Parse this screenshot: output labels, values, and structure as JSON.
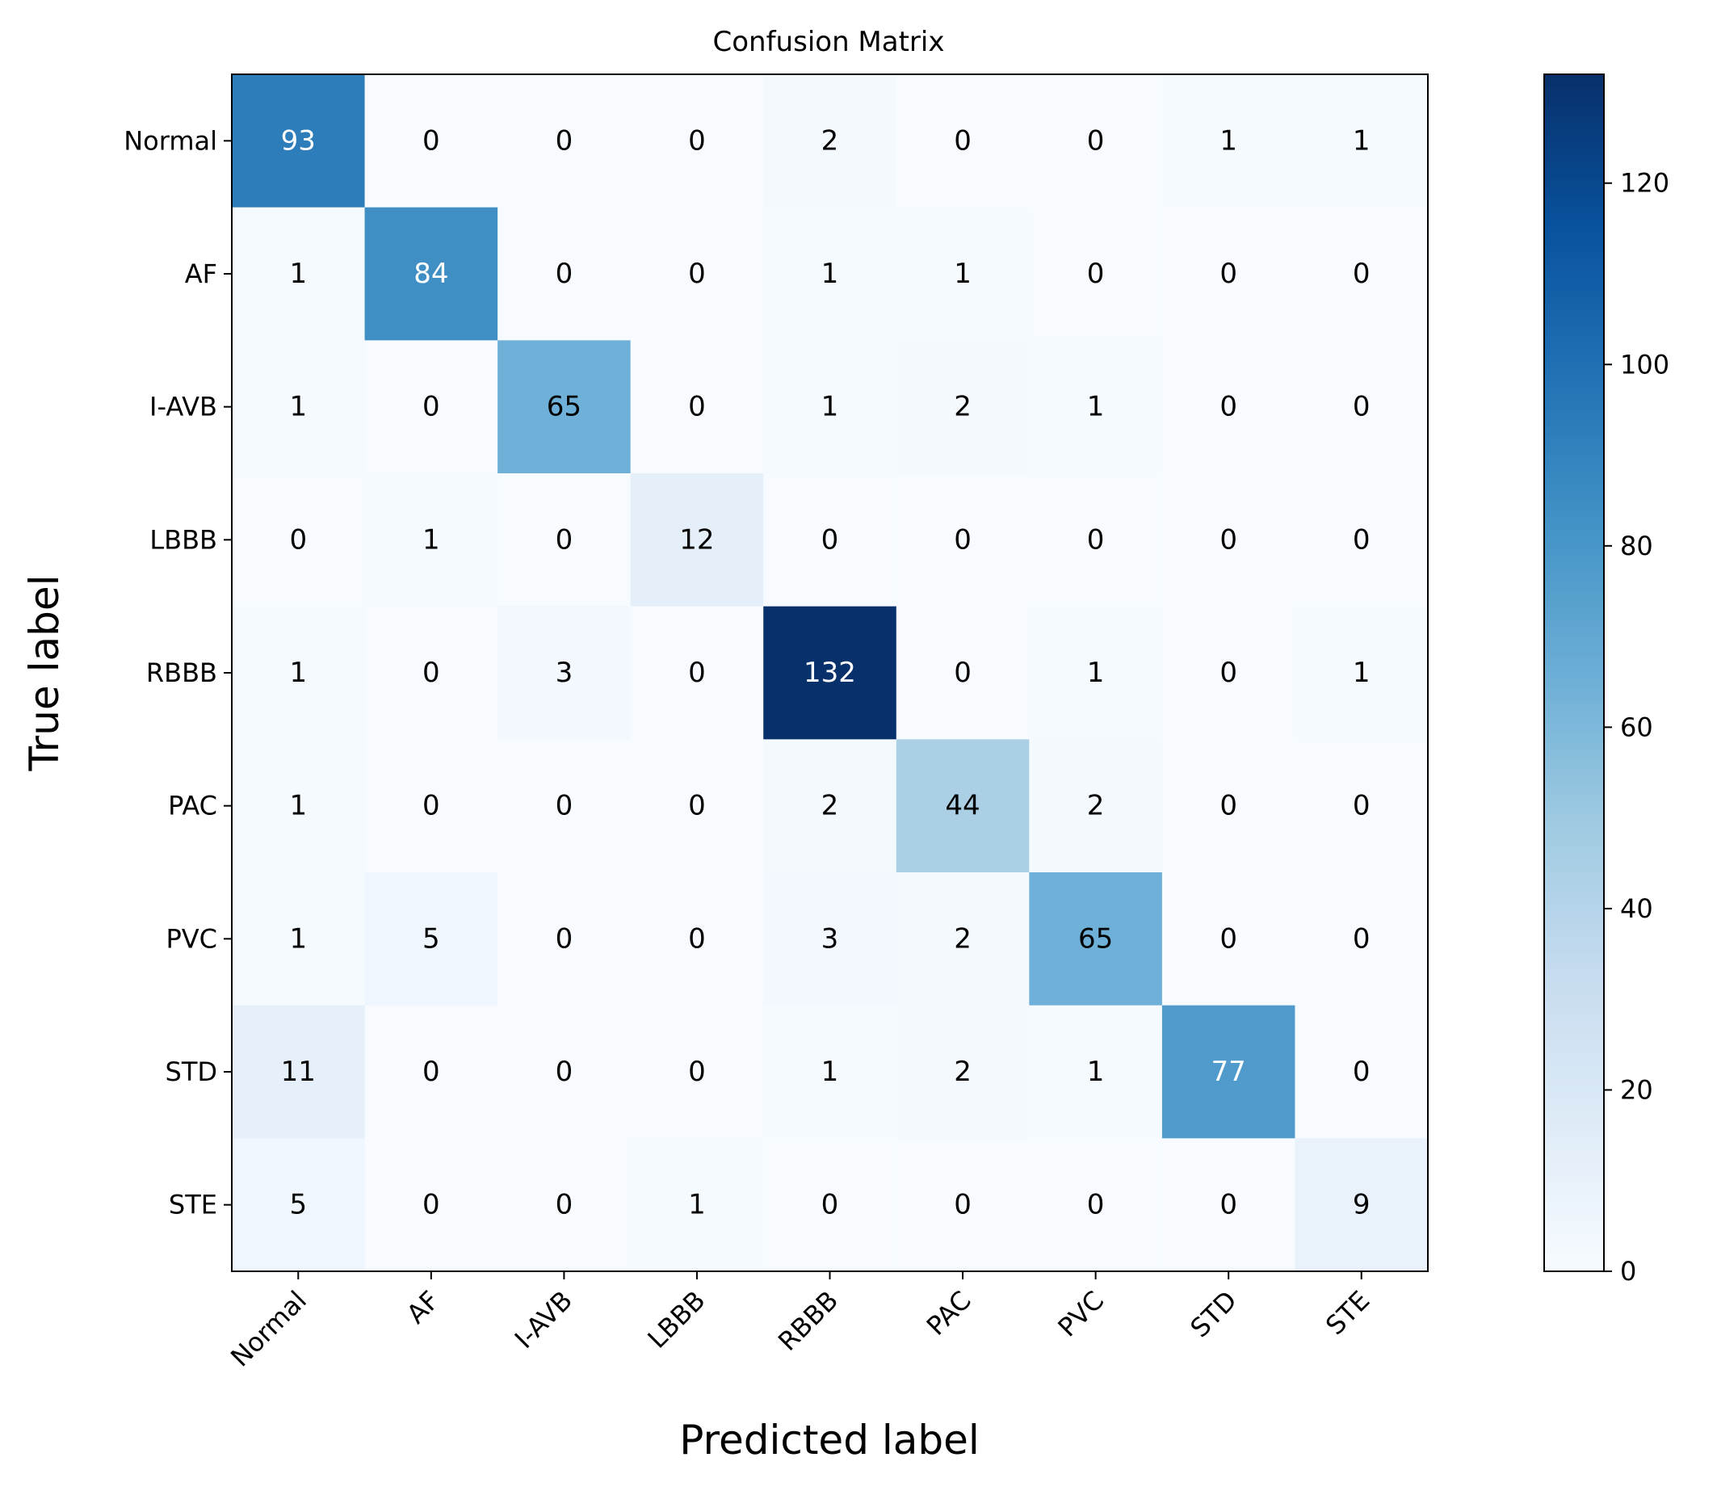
{
  "chart_data": {
    "type": "heatmap",
    "title": "Confusion Matrix",
    "xlabel": "Predicted label",
    "ylabel": "True label",
    "x_categories": [
      "Normal",
      "AF",
      "I-AVB",
      "LBBB",
      "RBBB",
      "PAC",
      "PVC",
      "STD",
      "STE"
    ],
    "y_categories": [
      "Normal",
      "AF",
      "I-AVB",
      "LBBB",
      "RBBB",
      "PAC",
      "PVC",
      "STD",
      "STE"
    ],
    "values": [
      [
        93,
        0,
        0,
        0,
        2,
        0,
        0,
        1,
        1
      ],
      [
        1,
        84,
        0,
        0,
        1,
        1,
        0,
        0,
        0
      ],
      [
        1,
        0,
        65,
        0,
        1,
        2,
        1,
        0,
        0
      ],
      [
        0,
        1,
        0,
        12,
        0,
        0,
        0,
        0,
        0
      ],
      [
        1,
        0,
        3,
        0,
        132,
        0,
        1,
        0,
        1
      ],
      [
        1,
        0,
        0,
        0,
        2,
        44,
        2,
        0,
        0
      ],
      [
        1,
        5,
        0,
        0,
        3,
        2,
        65,
        0,
        0
      ],
      [
        11,
        0,
        0,
        0,
        1,
        2,
        1,
        77,
        0
      ],
      [
        5,
        0,
        0,
        1,
        0,
        0,
        0,
        0,
        9
      ]
    ],
    "colormap": "Blues",
    "colorbar": {
      "range": [
        0,
        132
      ],
      "ticks": [
        0,
        20,
        40,
        60,
        80,
        100,
        120
      ]
    },
    "text_colors": {
      "dark": "#000000",
      "light": "#ffffff"
    },
    "text_threshold": 66
  }
}
